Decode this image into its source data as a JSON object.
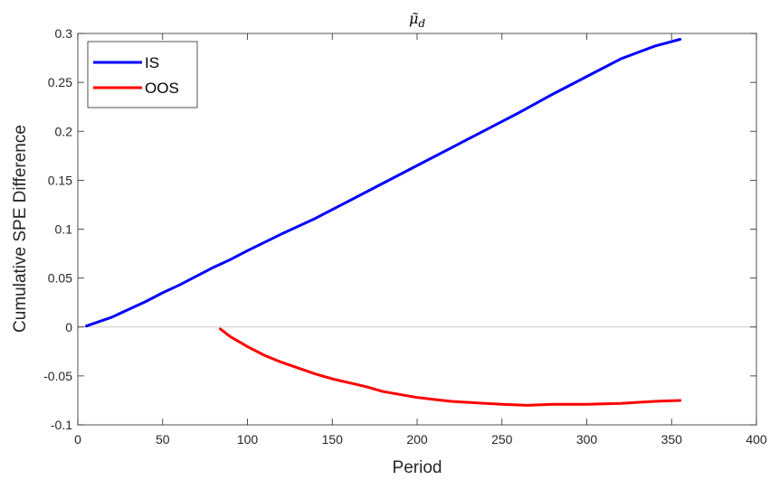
{
  "chart_data": {
    "type": "line",
    "title": "μ̃",
    "title_subscript": "d",
    "xlabel": "Period",
    "ylabel": "Cumulative SPE Difference",
    "xlim": [
      0,
      400
    ],
    "ylim": [
      -0.1,
      0.3
    ],
    "xticks": [
      0,
      50,
      100,
      150,
      200,
      250,
      300,
      350,
      400
    ],
    "yticks": [
      -0.1,
      -0.05,
      0,
      0.05,
      0.1,
      0.15,
      0.2,
      0.25,
      0.3
    ],
    "xtick_labels": [
      "0",
      "50",
      "100",
      "150",
      "200",
      "250",
      "300",
      "350",
      "400"
    ],
    "ytick_labels": [
      "-0.1",
      "-0.05",
      "0",
      "0.05",
      "0.1",
      "0.15",
      "0.2",
      "0.25",
      "0.3"
    ],
    "grid": false,
    "zero_line": true,
    "legend_position": "top-left",
    "series": [
      {
        "name": "IS",
        "color": "#0000ff",
        "x": [
          5,
          10,
          20,
          30,
          40,
          50,
          60,
          70,
          80,
          90,
          100,
          120,
          140,
          160,
          180,
          200,
          220,
          240,
          260,
          280,
          300,
          320,
          340,
          355
        ],
        "y": [
          0.001,
          0.004,
          0.01,
          0.018,
          0.026,
          0.035,
          0.043,
          0.052,
          0.061,
          0.069,
          0.078,
          0.095,
          0.111,
          0.129,
          0.147,
          0.165,
          0.183,
          0.201,
          0.219,
          0.238,
          0.256,
          0.274,
          0.287,
          0.294
        ]
      },
      {
        "name": "OOS",
        "color": "#ff0000",
        "x": [
          84,
          90,
          100,
          110,
          120,
          130,
          140,
          150,
          160,
          170,
          180,
          190,
          200,
          210,
          220,
          230,
          240,
          250,
          265,
          280,
          290,
          300,
          320,
          340,
          355
        ],
        "y": [
          -0.002,
          -0.01,
          -0.02,
          -0.029,
          -0.036,
          -0.042,
          -0.048,
          -0.053,
          -0.057,
          -0.061,
          -0.066,
          -0.069,
          -0.072,
          -0.074,
          -0.076,
          -0.077,
          -0.078,
          -0.079,
          -0.08,
          -0.079,
          -0.079,
          -0.079,
          -0.078,
          -0.076,
          -0.075
        ]
      }
    ]
  }
}
